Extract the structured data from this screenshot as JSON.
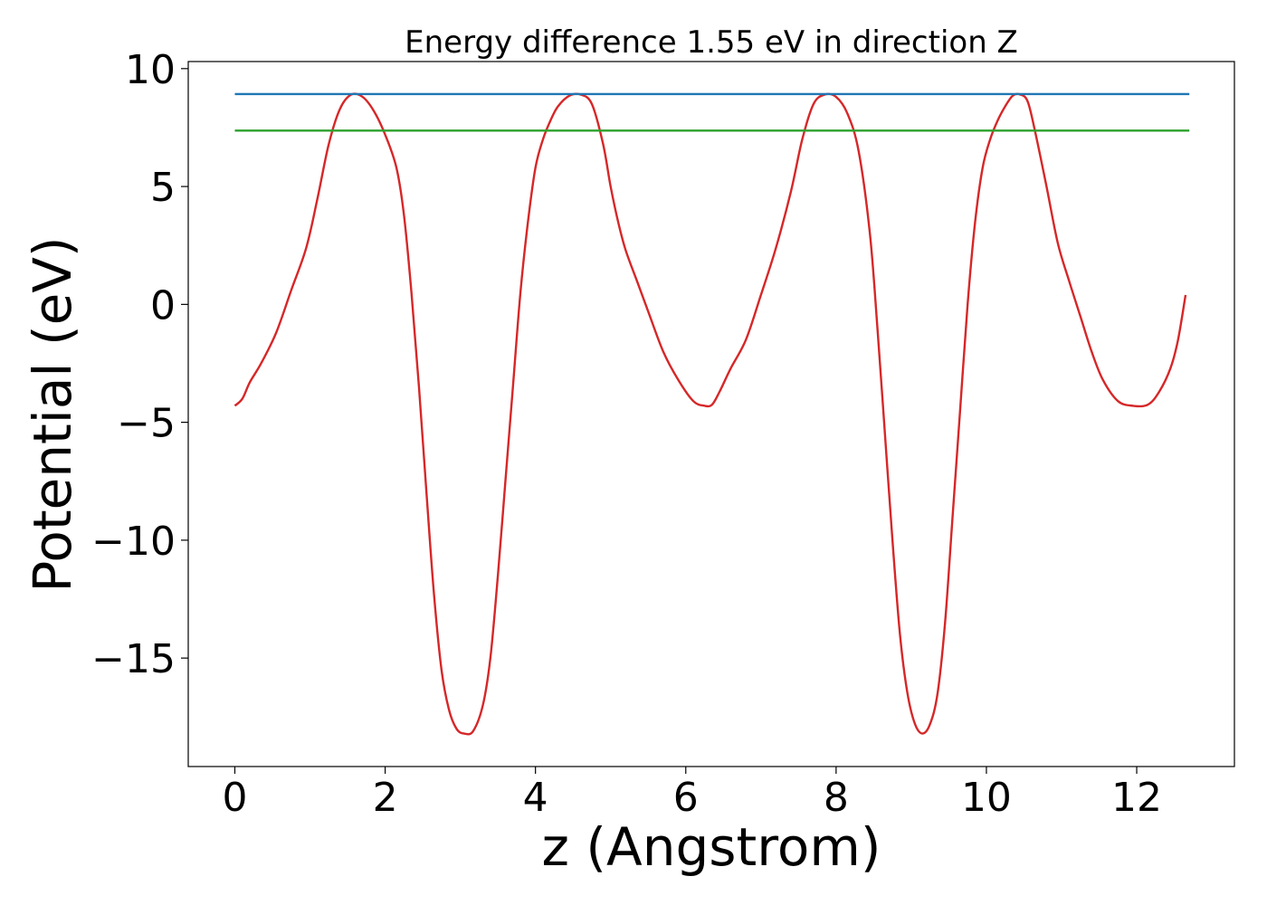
{
  "chart_data": {
    "type": "line",
    "title": "Energy difference 1.55 eV in direction Z",
    "xlabel": "z (Angstrom)",
    "ylabel": "Potential (eV)",
    "xlim": [
      -0.62,
      13.3
    ],
    "ylim": [
      -19.6,
      10.3
    ],
    "xticks": [
      0,
      2,
      4,
      6,
      8,
      10,
      12
    ],
    "yticks": [
      -15,
      -10,
      -5,
      0,
      5,
      10
    ],
    "xtick_labels": [
      "0",
      "2",
      "4",
      "6",
      "8",
      "10",
      "12"
    ],
    "ytick_labels": [
      "−15",
      "−10",
      "−5",
      "0",
      "5",
      "10"
    ],
    "grid": false,
    "legend": "none",
    "series": [
      {
        "color": "#d62728",
        "x": [
          0,
          0.1,
          0.2,
          0.35,
          0.55,
          0.75,
          0.95,
          1.1,
          1.25,
          1.4,
          1.55,
          1.7,
          1.85,
          2.0,
          2.15,
          2.25,
          2.35,
          2.45,
          2.55,
          2.65,
          2.75,
          2.85,
          2.95,
          3.05,
          3.17,
          3.3,
          3.4,
          3.5,
          3.6,
          3.7,
          3.8,
          3.9,
          4.0,
          4.1,
          4.2,
          4.3,
          4.45,
          4.6,
          4.75,
          4.9,
          5.0,
          5.1,
          5.2,
          5.35,
          5.5,
          5.7,
          5.9,
          6.1,
          6.25,
          6.35,
          6.45,
          6.6,
          6.8,
          7.0,
          7.2,
          7.4,
          7.55,
          7.7,
          7.85,
          8.0,
          8.15,
          8.3,
          8.45,
          8.55,
          8.65,
          8.75,
          8.85,
          8.95,
          9.05,
          9.15,
          9.25,
          9.35,
          9.45,
          9.55,
          9.65,
          9.75,
          9.85,
          9.95,
          10.05,
          10.15,
          10.25,
          10.35,
          10.45,
          10.55,
          10.65,
          10.8,
          10.95,
          11.1,
          11.25,
          11.4,
          11.55,
          11.75,
          11.95,
          12.15,
          12.3,
          12.45,
          12.55,
          12.65
        ],
        "y": [
          -4.3,
          -4.0,
          -3.3,
          -2.5,
          -1.2,
          0.6,
          2.4,
          4.5,
          6.8,
          8.3,
          8.9,
          8.8,
          8.2,
          7.2,
          5.8,
          3.8,
          0.5,
          -3.5,
          -8.0,
          -12.3,
          -15.5,
          -17.2,
          -18.0,
          -18.2,
          -18.1,
          -17.0,
          -15.0,
          -11.5,
          -7.5,
          -3.5,
          0.5,
          3.5,
          5.8,
          7.0,
          7.8,
          8.4,
          8.85,
          8.9,
          8.5,
          6.8,
          5.0,
          3.5,
          2.3,
          1.0,
          -0.3,
          -2.0,
          -3.2,
          -4.1,
          -4.3,
          -4.25,
          -3.7,
          -2.7,
          -1.5,
          0.4,
          2.4,
          4.8,
          7.0,
          8.5,
          8.9,
          8.8,
          8.1,
          6.5,
          3.0,
          -1.0,
          -5.5,
          -10.0,
          -14.0,
          -16.5,
          -17.8,
          -18.2,
          -17.8,
          -16.5,
          -13.5,
          -9.0,
          -4.5,
          0.0,
          3.5,
          5.8,
          7.0,
          7.8,
          8.4,
          8.85,
          8.9,
          8.6,
          7.3,
          5.0,
          2.6,
          1.0,
          -0.5,
          -2.0,
          -3.2,
          -4.1,
          -4.3,
          -4.25,
          -3.7,
          -2.7,
          -1.5,
          0.4
        ]
      },
      {
        "color": "#1f77b4",
        "x": [
          0,
          12.7
        ],
        "y": [
          8.92,
          8.92
        ]
      },
      {
        "color": "#2ca02c",
        "x": [
          0,
          12.7
        ],
        "y": [
          7.37,
          7.37
        ]
      }
    ]
  }
}
